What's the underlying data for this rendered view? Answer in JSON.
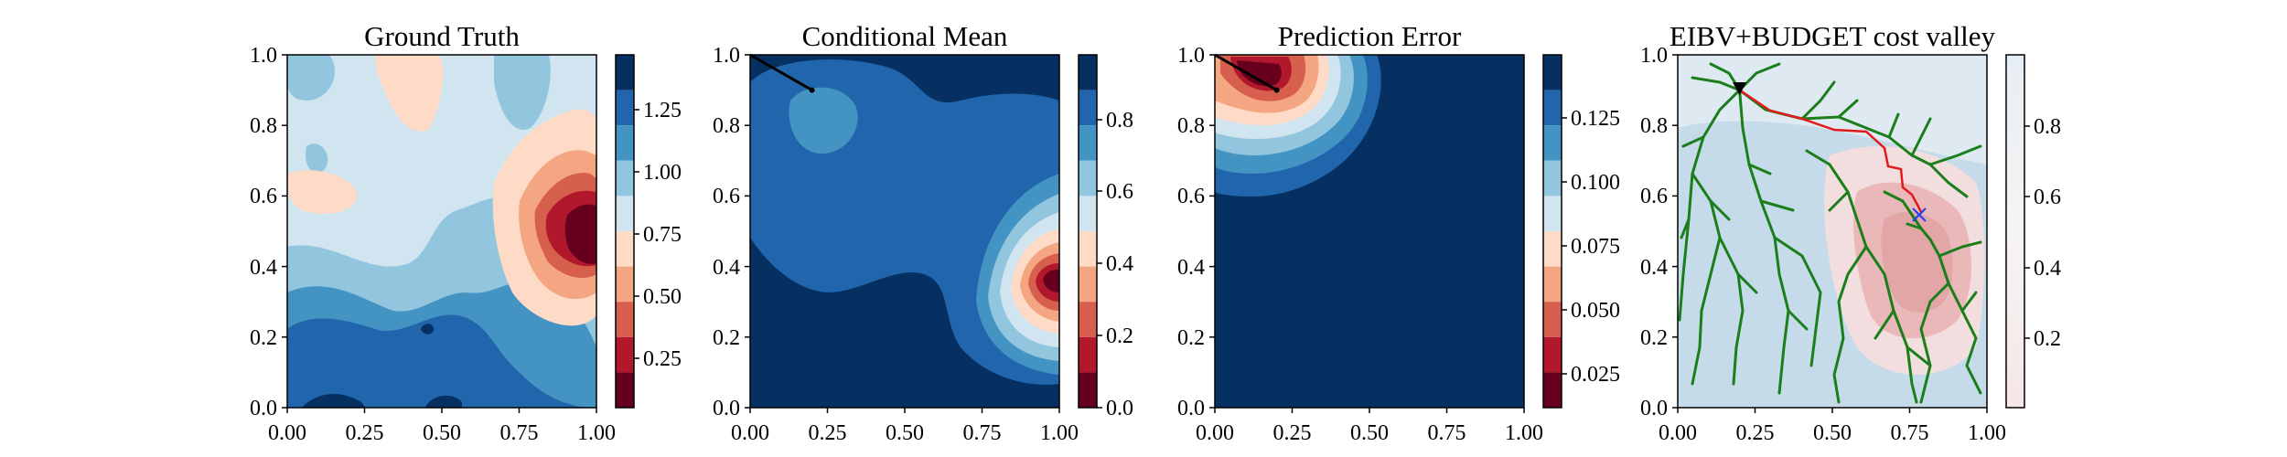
{
  "figure": {
    "background": "#ffffff"
  },
  "chart_data": [
    {
      "type": "heatmap",
      "title": "Ground Truth",
      "xlabel": "",
      "ylabel": "",
      "xlim": [
        0,
        1
      ],
      "ylim": [
        0,
        1
      ],
      "xticks": [
        "0.00",
        "0.25",
        "0.50",
        "0.75",
        "1.00"
      ],
      "yticks": [
        "0.0",
        "0.2",
        "0.4",
        "0.6",
        "0.8",
        "1.0"
      ],
      "colormap": "RdBu (discrete, 10 levels)",
      "colorbar": {
        "min": 0.03,
        "max": 1.45,
        "ticks": [
          "0.25",
          "0.50",
          "0.75",
          "1.00",
          "1.25"
        ]
      },
      "features": {
        "low_peak_center": [
          0.92,
          0.55
        ],
        "high_region": "bottom-left, lower 0.0–0.35"
      }
    },
    {
      "type": "heatmap",
      "title": "Conditional Mean",
      "xlabel": "",
      "ylabel": "",
      "xlim": [
        0,
        1
      ],
      "ylim": [
        0,
        1
      ],
      "xticks": [
        "0.00",
        "0.25",
        "0.50",
        "0.75",
        "1.00"
      ],
      "yticks": [
        "0.0",
        "0.2",
        "0.4",
        "0.6",
        "0.8",
        "1.0"
      ],
      "colormap": "RdBu (discrete, 10 levels)",
      "colorbar": {
        "min": 0.0,
        "max": 0.98,
        "ticks": [
          "0.0",
          "0.2",
          "0.4",
          "0.6",
          "0.8"
        ]
      },
      "path": [
        [
          0.0,
          1.0
        ],
        [
          0.2,
          0.9
        ]
      ],
      "features": {
        "low_peak_center": [
          0.95,
          0.5
        ],
        "sampled_point": [
          0.2,
          0.9
        ]
      }
    },
    {
      "type": "heatmap",
      "title": "Prediction Error",
      "xlabel": "",
      "ylabel": "",
      "xlim": [
        0,
        1
      ],
      "ylim": [
        0,
        1
      ],
      "xticks": [
        "0.00",
        "0.25",
        "0.50",
        "0.75",
        "1.00"
      ],
      "yticks": [
        "0.0",
        "0.2",
        "0.4",
        "0.6",
        "0.8",
        "1.0"
      ],
      "colormap": "RdBu (discrete, 10 levels)",
      "colorbar": {
        "min": 0.012,
        "max": 0.148,
        "ticks": [
          "0.025",
          "0.050",
          "0.075",
          "0.100",
          "0.125"
        ]
      },
      "path": [
        [
          0.0,
          1.0
        ],
        [
          0.2,
          0.9
        ]
      ],
      "features": {
        "low_peak_center": [
          0.15,
          0.9
        ]
      }
    },
    {
      "type": "heatmap",
      "title": "EIBV+BUDGET cost valley",
      "xlabel": "",
      "ylabel": "",
      "xlim": [
        0,
        1
      ],
      "ylim": [
        0,
        1
      ],
      "xticks": [
        "0.00",
        "0.25",
        "0.50",
        "0.75",
        "1.00"
      ],
      "yticks": [
        "0.0",
        "0.2",
        "0.4",
        "0.6",
        "0.8",
        "1.0"
      ],
      "colormap": "RdBu (continuous, faint)",
      "colorbar": {
        "min": 0.0,
        "max": 0.98,
        "ticks": [
          "0.2",
          "0.4",
          "0.6",
          "0.8"
        ]
      },
      "current_location": [
        0.2,
        0.9
      ],
      "target_location": [
        0.75,
        0.55
      ],
      "selected_path": [
        [
          0.2,
          0.9
        ],
        [
          0.3,
          0.8
        ],
        [
          0.5,
          0.73
        ],
        [
          0.62,
          0.7
        ],
        [
          0.68,
          0.63
        ],
        [
          0.72,
          0.6
        ],
        [
          0.75,
          0.55
        ]
      ],
      "tree": "RRT branches (green)"
    }
  ]
}
